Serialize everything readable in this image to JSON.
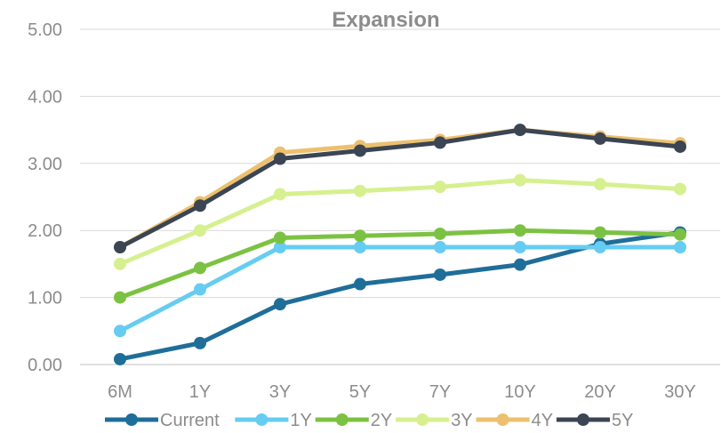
{
  "chart_data": {
    "type": "line",
    "title": "Expansion",
    "xlabel": "",
    "ylabel": "",
    "categories": [
      "6M",
      "1Y",
      "3Y",
      "5Y",
      "7Y",
      "10Y",
      "20Y",
      "30Y"
    ],
    "ylim": [
      0,
      5
    ],
    "yticks": [
      "0.00",
      "1.00",
      "2.00",
      "3.00",
      "4.00",
      "5.00"
    ],
    "grid": true,
    "legend_position": "bottom",
    "series": [
      {
        "name": "Current",
        "color": "#1f6e99",
        "values": [
          0.08,
          0.32,
          0.9,
          1.2,
          1.34,
          1.49,
          1.8,
          1.97
        ]
      },
      {
        "name": "1Y",
        "color": "#66ccf2",
        "values": [
          0.5,
          1.12,
          1.75,
          1.75,
          1.75,
          1.75,
          1.75,
          1.75
        ]
      },
      {
        "name": "2Y",
        "color": "#7cc242",
        "values": [
          1.0,
          1.44,
          1.89,
          1.92,
          1.95,
          2.0,
          1.97,
          1.94
        ]
      },
      {
        "name": "3Y",
        "color": "#d6f08f",
        "values": [
          1.5,
          2.0,
          2.54,
          2.59,
          2.65,
          2.75,
          2.69,
          2.62
        ]
      },
      {
        "name": "4Y",
        "color": "#ecc06e",
        "values": [
          1.75,
          2.42,
          3.16,
          3.26,
          3.35,
          3.5,
          3.4,
          3.3
        ]
      },
      {
        "name": "5Y",
        "color": "#3b4553",
        "values": [
          1.75,
          2.37,
          3.07,
          3.19,
          3.31,
          3.5,
          3.37,
          3.25
        ]
      }
    ]
  }
}
